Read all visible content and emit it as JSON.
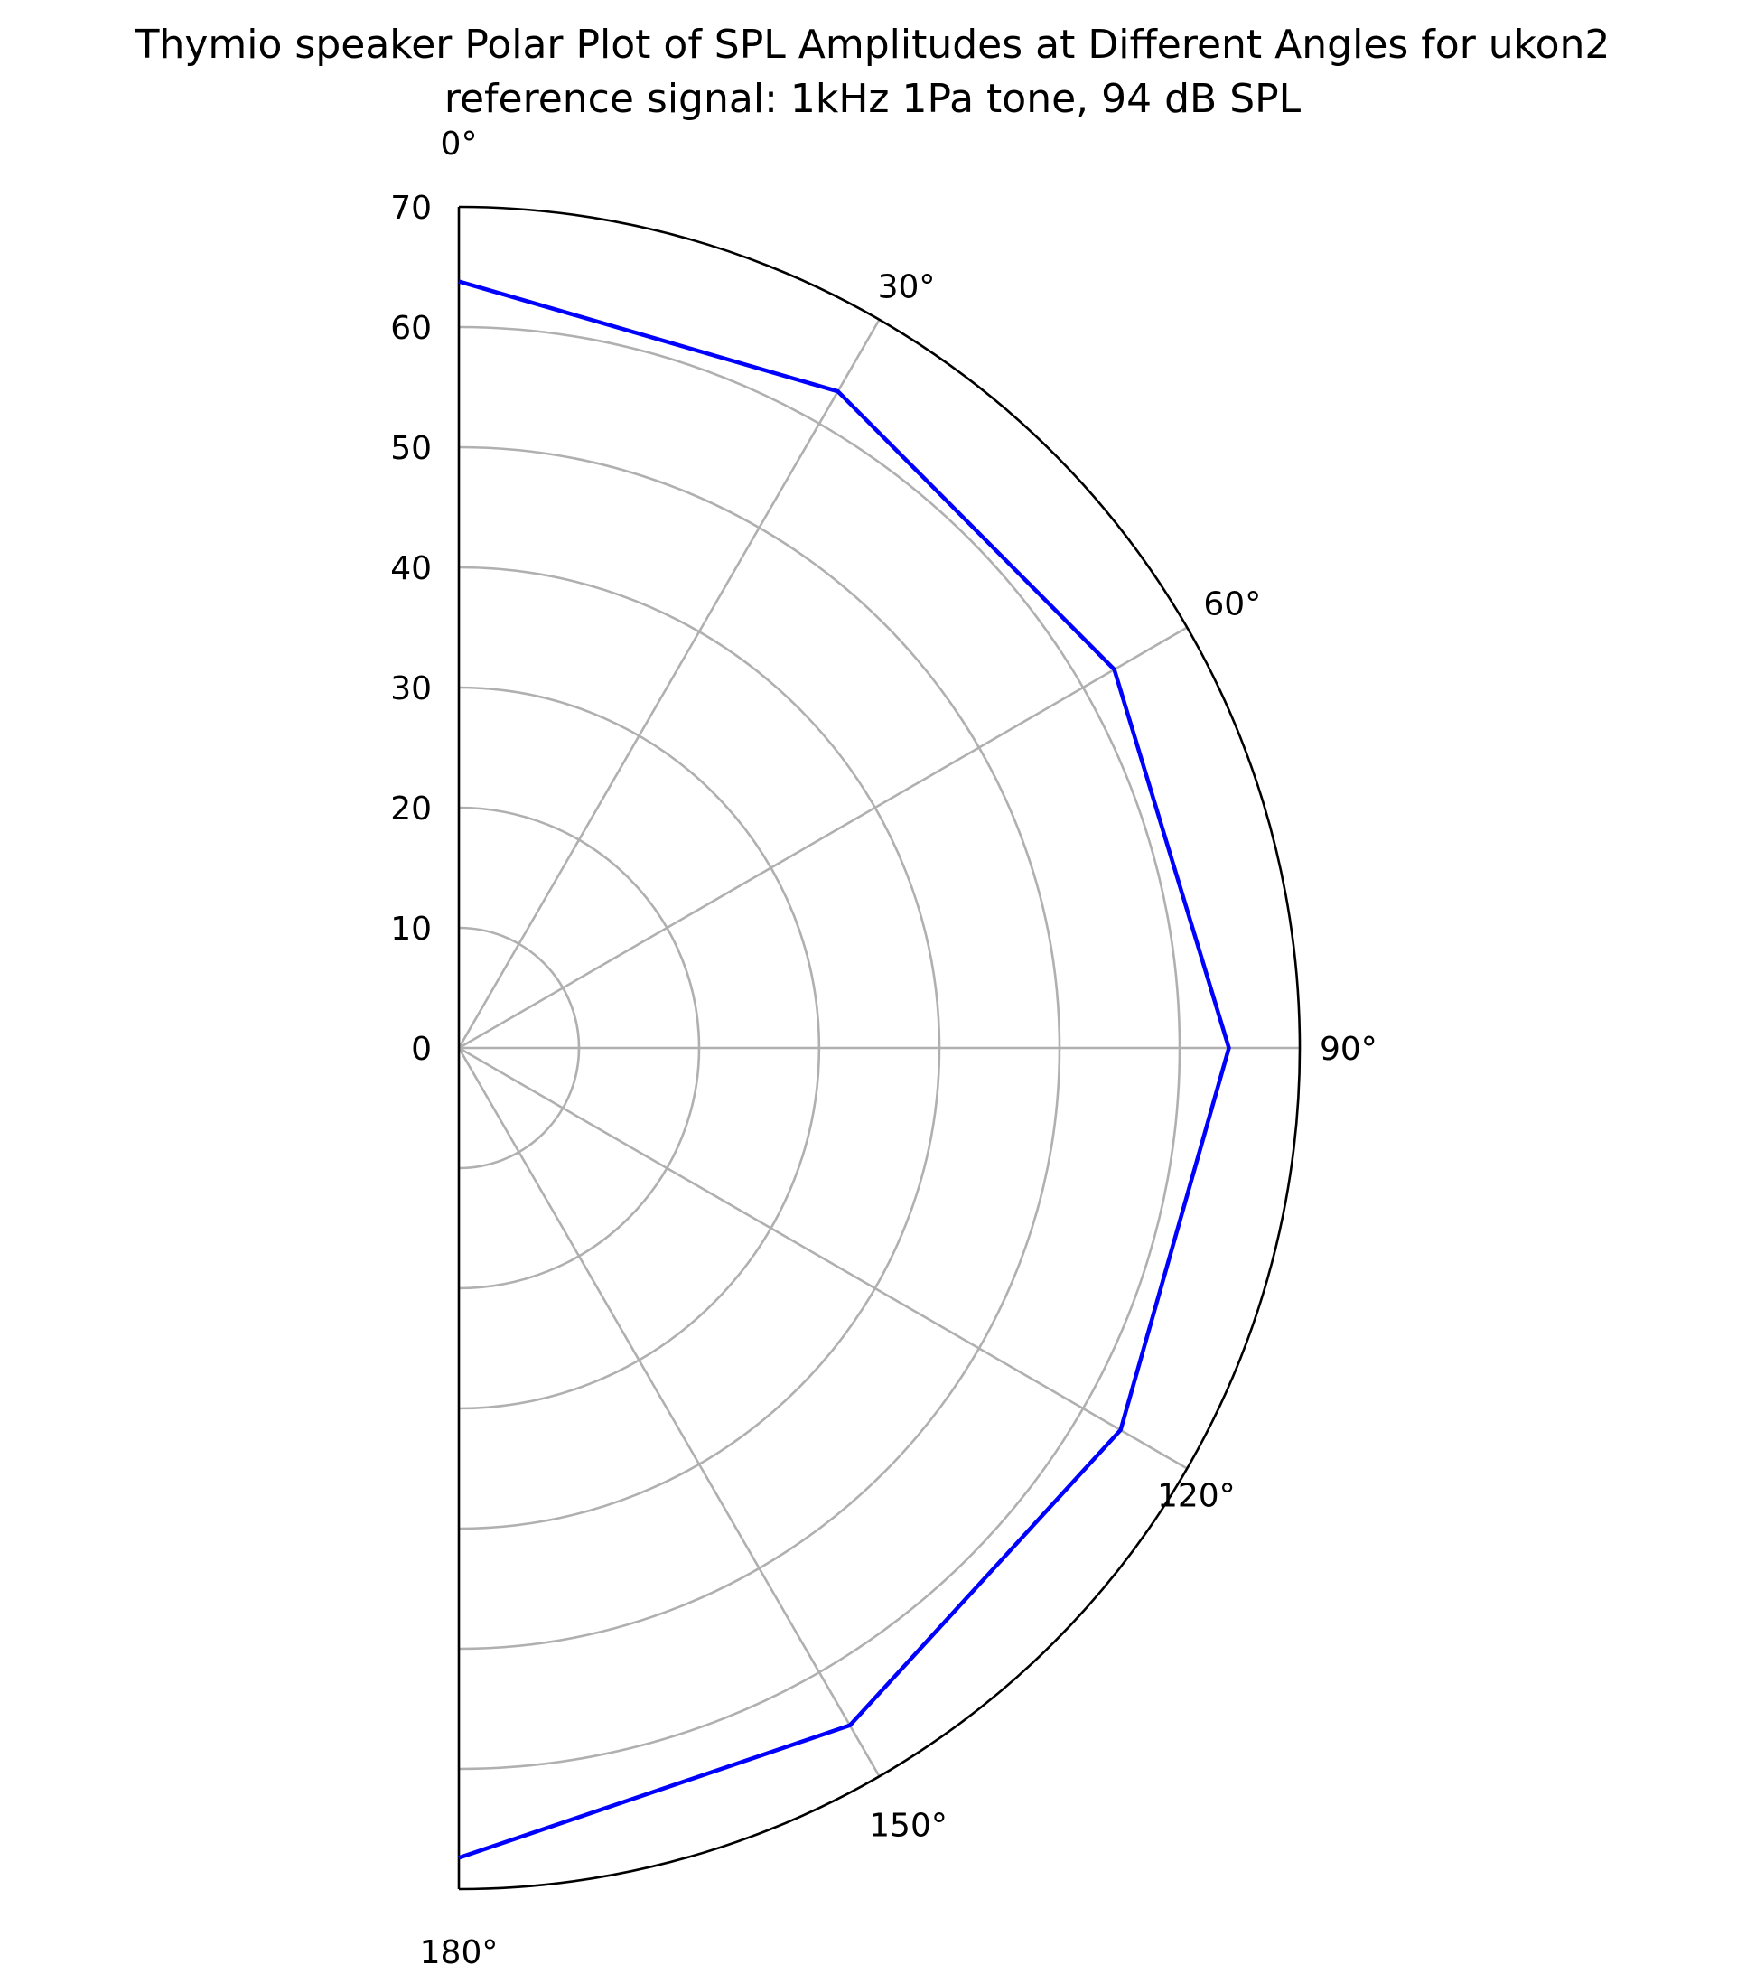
{
  "chart_data": {
    "type": "line",
    "subtype": "polar",
    "title": "Thymio speaker Polar Plot of SPL Amplitudes at Different Angles for ukon2",
    "subtitle": "reference signal: 1kHz 1Pa tone, 94 dB SPL",
    "angle_ticks": [
      "0°",
      "30°",
      "60°",
      "90°",
      "120°",
      "150°",
      "180°"
    ],
    "angle_tick_values": [
      0,
      30,
      60,
      90,
      120,
      150,
      180
    ],
    "radial_ticks": [
      "0",
      "10",
      "20",
      "30",
      "40",
      "50",
      "60",
      "70"
    ],
    "radial_tick_values": [
      0,
      10,
      20,
      30,
      40,
      50,
      60,
      70
    ],
    "rlim": [
      0,
      70
    ],
    "theta_range": [
      0,
      180
    ],
    "theta_zero": "top",
    "theta_direction": "clockwise",
    "grid": true,
    "series": [
      {
        "color": "#0000ff",
        "theta": [
          0,
          30,
          60,
          90,
          120,
          150,
          180
        ],
        "r": [
          63.8,
          63.1,
          63.0,
          64.1,
          63.6,
          65.1,
          67.4
        ]
      }
    ]
  }
}
